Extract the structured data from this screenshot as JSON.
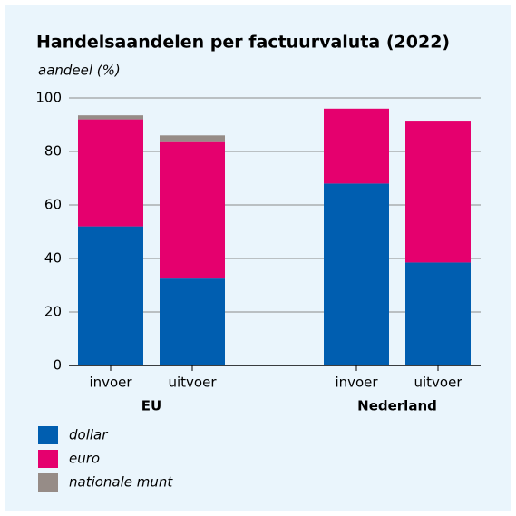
{
  "chart_data": {
    "type": "stacked_bar",
    "title": "Handelsaandelen per factuurvaluta (2022)",
    "y_label": "aandeel (%)",
    "categories": [
      "invoer",
      "uitvoer",
      "invoer",
      "uitvoer"
    ],
    "groups": [
      "EU",
      "Nederland"
    ],
    "series": [
      {
        "name": "dollar",
        "color": "#005eb0",
        "values": [
          52,
          32.5,
          68,
          38.5
        ]
      },
      {
        "name": "euro",
        "color": "#e5006e",
        "values": [
          40,
          51,
          28,
          53
        ]
      },
      {
        "name": "nationale munt",
        "color": "#968c87",
        "values": [
          1.5,
          2.5,
          0,
          0
        ]
      }
    ],
    "ylim": [
      0,
      100
    ],
    "yticks": [
      0,
      20,
      40,
      60,
      80,
      100
    ],
    "grid": true,
    "legend": "bottom-left"
  }
}
